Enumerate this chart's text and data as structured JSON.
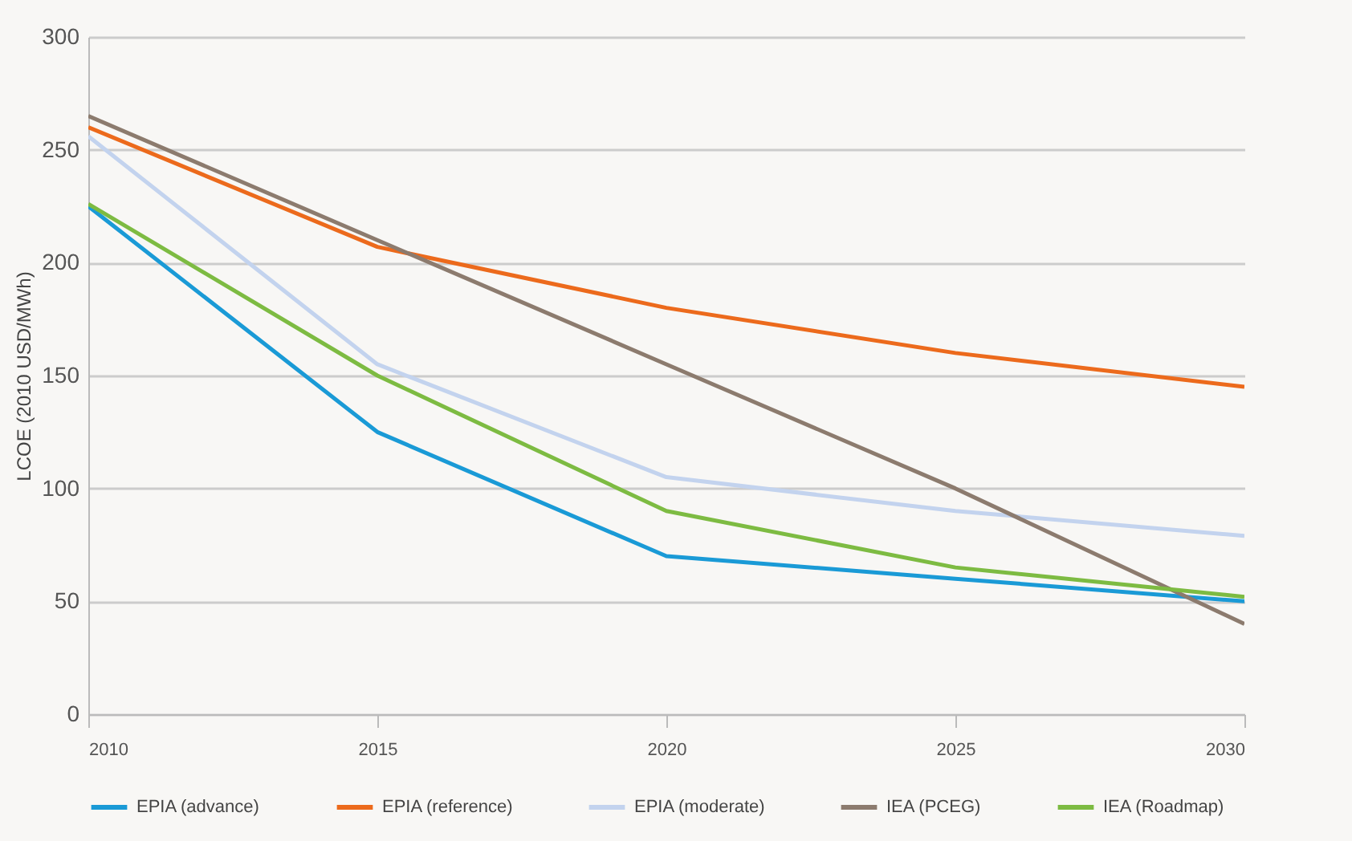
{
  "chart_data": {
    "type": "line",
    "ylabel": "LCOE (2010 USD/MWh)",
    "x": [
      2010,
      2015,
      2020,
      2025,
      2030
    ],
    "xlim": [
      2010,
      2030
    ],
    "xticks": [
      2010,
      2015,
      2020,
      2025,
      2030
    ],
    "ylim": [
      0,
      300
    ],
    "yticks": [
      0,
      50,
      100,
      150,
      200,
      250,
      300
    ],
    "grid": "y",
    "legend": "bottom",
    "marker": "none",
    "series": [
      {
        "name": "EPIA (advance)",
        "color": "#1a9ad6",
        "values": [
          225,
          125,
          70,
          60,
          50
        ]
      },
      {
        "name": "EPIA (reference)",
        "color": "#ec6a1c",
        "values": [
          260,
          207,
          180,
          160,
          145
        ]
      },
      {
        "name": "EPIA (moderate)",
        "color": "#c3d3ee",
        "values": [
          256,
          155,
          105,
          90,
          79
        ]
      },
      {
        "name": "IEA (PCEG)",
        "color": "#8c7b6e",
        "values": [
          265,
          210,
          155,
          100,
          40
        ]
      },
      {
        "name": "IEA (Roadmap)",
        "color": "#7dbb42",
        "values": [
          226,
          150,
          90,
          65,
          52
        ]
      }
    ]
  }
}
